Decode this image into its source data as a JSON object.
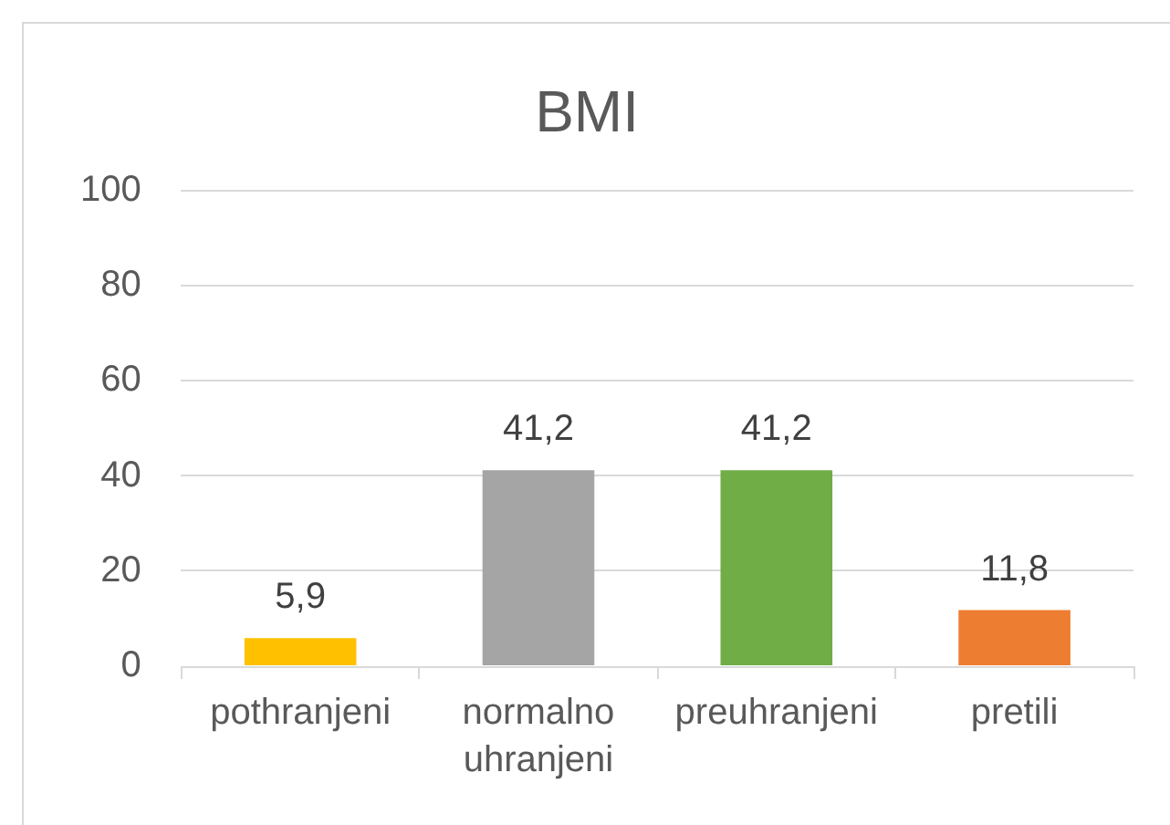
{
  "chart_data": {
    "type": "bar",
    "title": "BMI",
    "categories": [
      "pothranjeni",
      "normalno uhranjeni",
      "preuhranjeni",
      "pretili"
    ],
    "values": [
      5.9,
      41.2,
      41.2,
      11.8
    ],
    "colors": [
      "#ffc000",
      "#a5a5a5",
      "#70ad47",
      "#ed7d31"
    ],
    "value_labels": [
      "5,9",
      "41,2",
      "41,2",
      "11,8"
    ],
    "ylim": [
      0,
      100
    ],
    "yticks": [
      0,
      20,
      40,
      60,
      80,
      100
    ],
    "grid": "y",
    "legend": false
  }
}
